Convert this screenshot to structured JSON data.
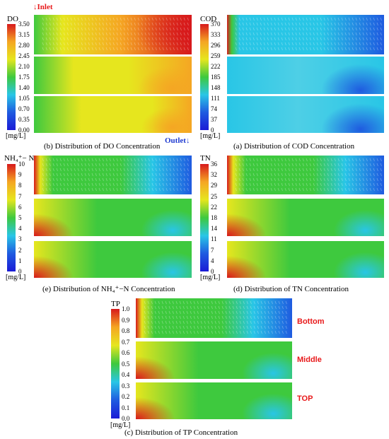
{
  "figures": [
    {
      "id": "do",
      "title": "DO",
      "ticks": [
        "3.50",
        "3.15",
        "2.80",
        "2.45",
        "2.10",
        "1.75",
        "1.40",
        "1.05",
        "0.70",
        "0.35",
        "0.00"
      ],
      "unit": "[mg/L]",
      "caption": "(b)    Distribution of DO Concentration",
      "scheme": "do"
    },
    {
      "id": "cod",
      "title": "COD",
      "ticks": [
        "370",
        "333",
        "296",
        "259",
        "222",
        "185",
        "148",
        "111",
        "74",
        "37",
        "0"
      ],
      "unit": "[mg/L]",
      "caption": "(a)    Distribution of COD Concentration",
      "scheme": "low"
    },
    {
      "id": "nh4",
      "title": "NH₄⁺− N",
      "ticks": [
        "10",
        "9",
        "8",
        "7",
        "6",
        "5",
        "4",
        "3",
        "2",
        "1",
        "0"
      ],
      "unit": "[mg/L]",
      "caption": "(e)    Distribution of NH₄⁺−N Concentration",
      "scheme": "mid"
    },
    {
      "id": "tn",
      "title": "TN",
      "ticks": [
        "36",
        "32",
        "29",
        "25",
        "22",
        "18",
        "14",
        "11",
        "7",
        "4",
        "0"
      ],
      "unit": "[mg/L]",
      "caption": "(d)    Distribution of TN Concentration",
      "scheme": "mid"
    },
    {
      "id": "tp",
      "title": "TP",
      "ticks": [
        "1.0",
        "0.9",
        "0.8",
        "0.7",
        "0.6",
        "0.5",
        "0.4",
        "0.3",
        "0.2",
        "0.1",
        "0.0"
      ],
      "unit": "[mg/L]",
      "caption": "(c)    Distribution of TP Concentration",
      "scheme": "mid"
    }
  ],
  "annotations": {
    "inlet": "Inlet",
    "outlet": "Outlet",
    "layers": [
      "Bottom",
      "Middle",
      "TOP"
    ]
  },
  "colors": {
    "max": "#d7191c",
    "high": "#f5a623",
    "mid_high": "#e6e61e",
    "mid": "#3ec93e",
    "low_mid": "#29c6e6",
    "low": "#1f5be0",
    "min": "#1b1bd6",
    "annotation_red": "#e8191a",
    "annotation_blue": "#1f3bd1"
  }
}
